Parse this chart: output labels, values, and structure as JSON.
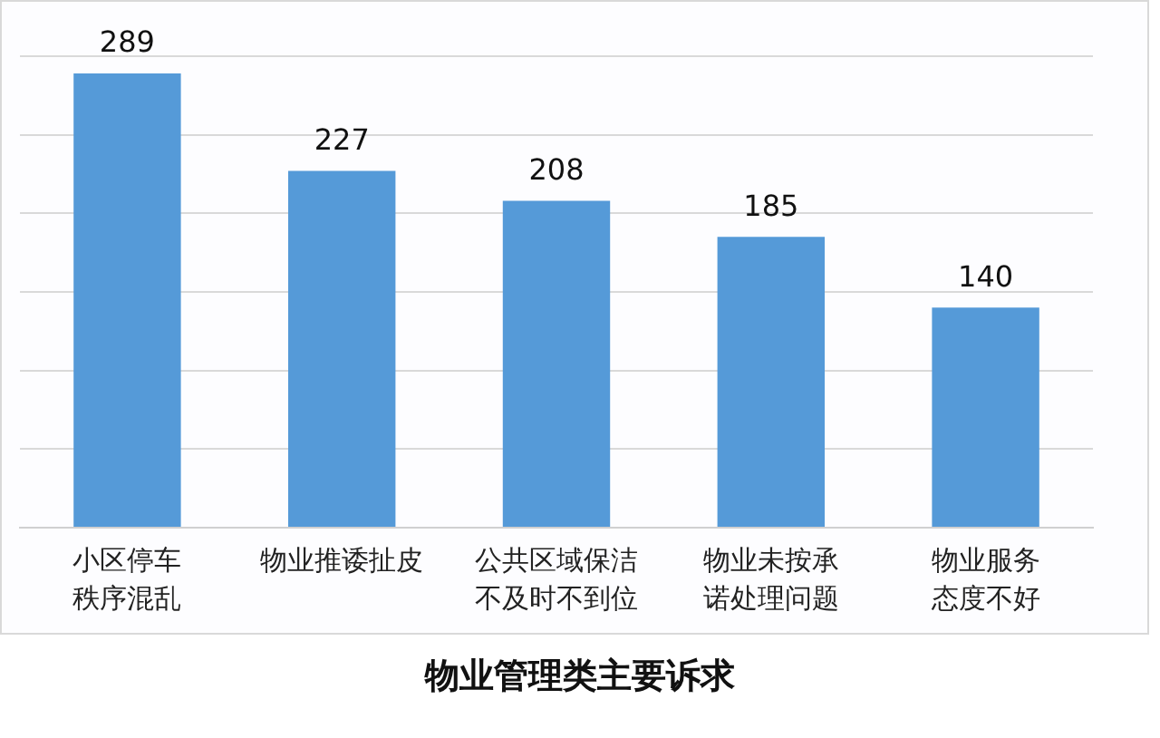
{
  "chart_data": {
    "type": "bar",
    "title": "物业管理类主要诉求",
    "categories": [
      "小区停车秩序混乱",
      "物业推诿扯皮",
      "公共区域保洁不及时不到位",
      "物业未按承诺处理问题",
      "物业服务态度不好"
    ],
    "values": [
      289,
      227,
      208,
      185,
      140
    ],
    "color": "#559ad8",
    "ylim": [
      0,
      300
    ],
    "yticks": [
      {
        "value": 0,
        "label": null
      },
      {
        "value": 50,
        "label": null
      },
      {
        "value": 100,
        "label": null
      },
      {
        "value": 150,
        "label": null
      },
      {
        "value": 200,
        "label": null
      },
      {
        "value": 250,
        "label": null
      },
      {
        "value": 300,
        "label": null
      }
    ],
    "grid": "y",
    "tick_labels": "x",
    "data_labels": true
  }
}
